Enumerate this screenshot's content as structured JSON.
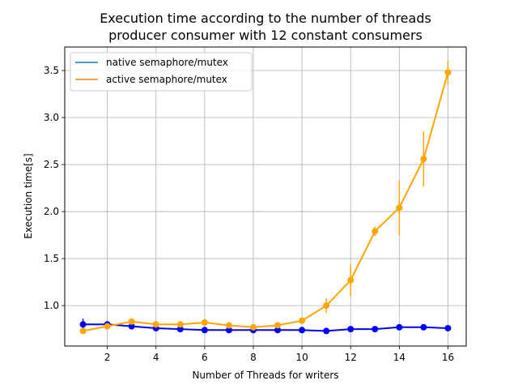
{
  "chart_data": {
    "type": "line",
    "title_line1": "Execution time according to the number of threads",
    "title_line2": "producer consumer with 12 constant consumers",
    "xlabel": "Number of Threads for writers",
    "ylabel": "Execution time[s]",
    "xlim": [
      0.25,
      16.75
    ],
    "ylim": [
      0.57,
      3.75
    ],
    "xticks": [
      2,
      4,
      6,
      8,
      10,
      12,
      14,
      16
    ],
    "yticks": [
      1.0,
      1.5,
      2.0,
      2.5,
      3.0,
      3.5
    ],
    "xtick_labels": [
      "2",
      "4",
      "6",
      "8",
      "10",
      "12",
      "14",
      "16"
    ],
    "ytick_labels": [
      "1.0",
      "1.5",
      "2.0",
      "2.5",
      "3.0",
      "3.5"
    ],
    "grid": true,
    "legend_position": "top-left",
    "legend": [
      {
        "label": "native semaphore/mutex",
        "color": "#1f77b4"
      },
      {
        "label": "active semaphore/mutex",
        "color": "#ff7f0e"
      }
    ],
    "x": [
      1,
      2,
      3,
      4,
      5,
      6,
      7,
      8,
      9,
      10,
      11,
      12,
      13,
      14,
      15,
      16
    ],
    "series": [
      {
        "name": "native semaphore/mutex",
        "plot_color": "#0000ff",
        "values": [
          0.8,
          0.8,
          0.78,
          0.76,
          0.75,
          0.74,
          0.74,
          0.74,
          0.74,
          0.74,
          0.73,
          0.75,
          0.75,
          0.77,
          0.77,
          0.76
        ],
        "errors": [
          0.06,
          0.01,
          0.01,
          0.01,
          0.01,
          0.01,
          0.01,
          0.01,
          0.01,
          0.01,
          0.01,
          0.01,
          0.01,
          0.01,
          0.01,
          0.01
        ]
      },
      {
        "name": "active semaphore/mutex",
        "plot_color": "#ffa500",
        "values": [
          0.73,
          0.78,
          0.83,
          0.8,
          0.8,
          0.82,
          0.79,
          0.77,
          0.79,
          0.84,
          1.0,
          1.27,
          1.79,
          2.04,
          2.56,
          3.48
        ],
        "errors": [
          0.02,
          0.01,
          0.02,
          0.02,
          0.02,
          0.02,
          0.02,
          0.02,
          0.02,
          0.03,
          0.08,
          0.17,
          0.05,
          0.29,
          0.29,
          0.13
        ]
      }
    ]
  }
}
